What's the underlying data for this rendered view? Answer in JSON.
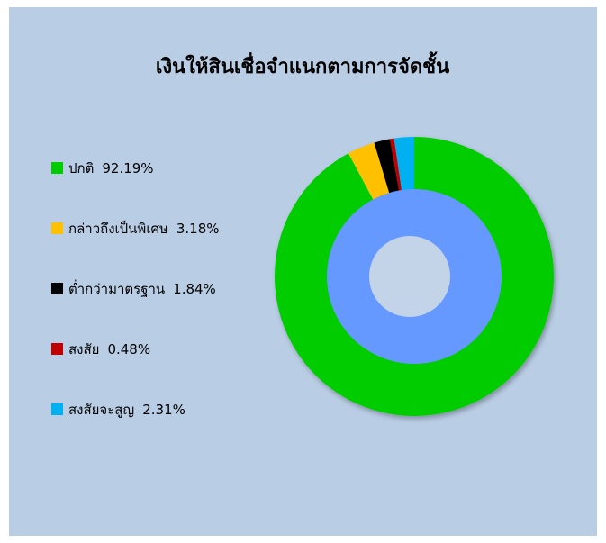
{
  "chart_data": {
    "type": "donut",
    "title": "เงินให้สินเชื่อจำแนกตามการจัดชั้น",
    "categories": [
      "ปกติ",
      "กล่าวถึงเป็นพิเศษ",
      "ต่ำกว่ามาตรฐาน",
      "สงสัย",
      "สงสัยจะสูญ"
    ],
    "values": [
      92.19,
      3.18,
      1.84,
      0.48,
      2.31
    ],
    "value_labels": [
      "92.19%",
      "3.18%",
      "1.84%",
      "0.48%",
      "2.31%"
    ],
    "colors": [
      "#00cc00",
      "#ffc000",
      "#000000",
      "#c00000",
      "#00b0f0"
    ],
    "legend": "left"
  }
}
